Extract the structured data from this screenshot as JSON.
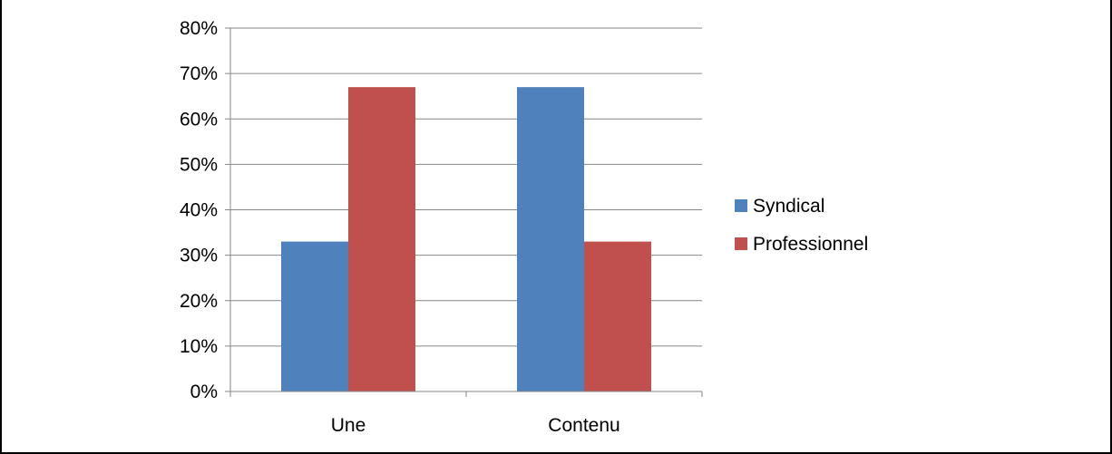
{
  "chart_data": {
    "type": "bar",
    "categories": [
      "Une",
      "Contenu"
    ],
    "series": [
      {
        "name": "Syndical",
        "values": [
          33,
          67
        ],
        "color": "#4f81bd"
      },
      {
        "name": "Professionnel",
        "values": [
          67,
          33
        ],
        "color": "#c0504d"
      }
    ],
    "ylim": [
      0,
      80
    ],
    "ytick_step": 10,
    "ytick_suffix": "%",
    "grid": true,
    "legend": "right",
    "title": "",
    "xlabel": "",
    "ylabel": ""
  }
}
